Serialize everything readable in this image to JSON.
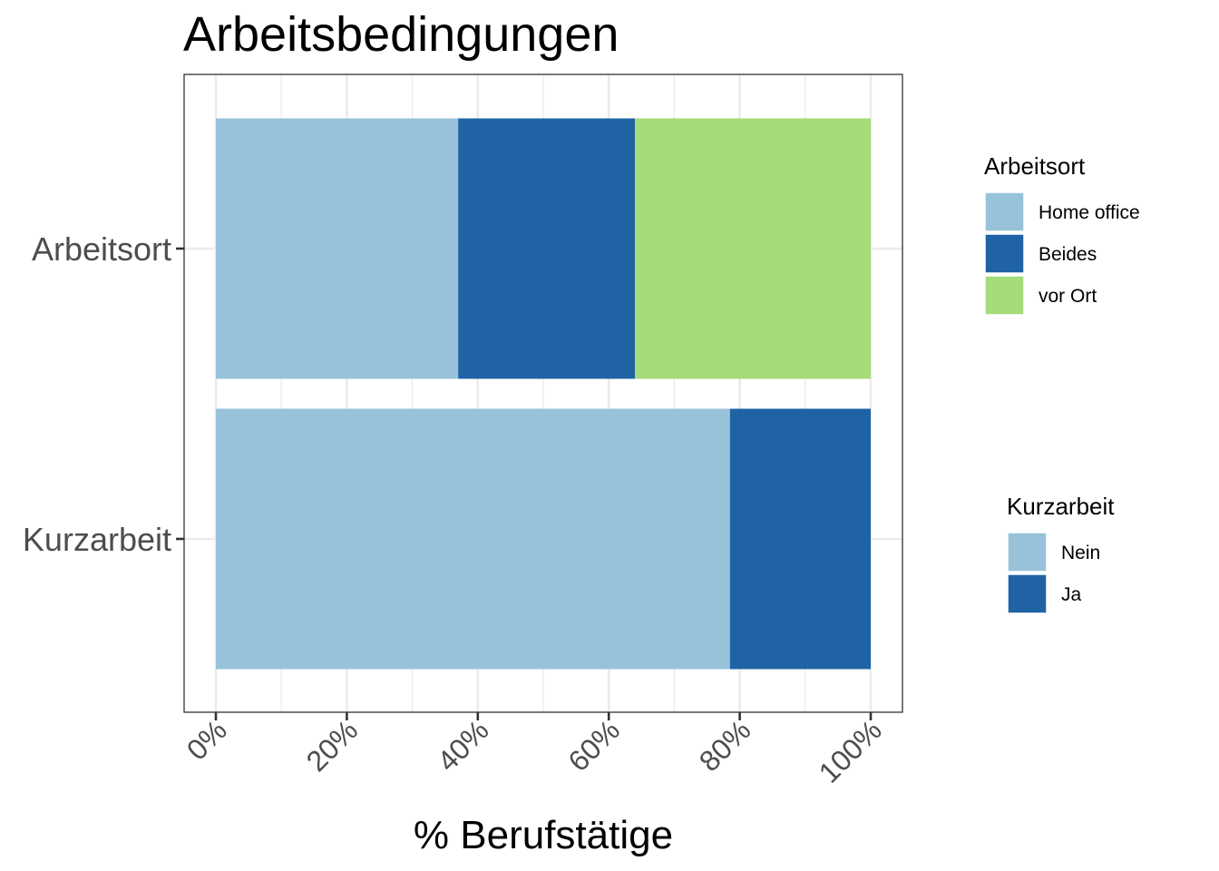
{
  "chart_data": {
    "type": "bar",
    "orientation": "horizontal",
    "stacked": true,
    "title": "Arbeitsbedingungen",
    "xlabel": "% Berufstätige",
    "ylabel": "",
    "xlim": [
      0,
      1
    ],
    "x_ticks": [
      "0%",
      "20%",
      "40%",
      "60%",
      "80%",
      "100%"
    ],
    "grid": true,
    "categories": [
      "Arbeitsort",
      "Kurzarbeit"
    ],
    "bars": [
      {
        "category": "Arbeitsort",
        "segments": [
          {
            "name": "Home office",
            "value": 0.37,
            "color": "#97c2da"
          },
          {
            "name": "Beides",
            "value": 0.27,
            "color": "#1f63a5"
          },
          {
            "name": "vor Ort",
            "value": 0.36,
            "color": "#a5db79"
          }
        ]
      },
      {
        "category": "Kurzarbeit",
        "segments": [
          {
            "name": "Nein",
            "value": 0.785,
            "color": "#97c2da"
          },
          {
            "name": "Ja",
            "value": 0.215,
            "color": "#1f63a5"
          }
        ]
      }
    ],
    "legends": [
      {
        "title": "Arbeitsort",
        "placement": "right-top",
        "items": [
          {
            "label": "Home office",
            "color": "#97c2da"
          },
          {
            "label": "Beides",
            "color": "#1f63a5"
          },
          {
            "label": "vor Ort",
            "color": "#a5db79"
          }
        ]
      },
      {
        "title": "Kurzarbeit",
        "placement": "right-bottom",
        "items": [
          {
            "label": "Nein",
            "color": "#97c2da"
          },
          {
            "label": "Ja",
            "color": "#1f63a5"
          }
        ]
      }
    ]
  }
}
